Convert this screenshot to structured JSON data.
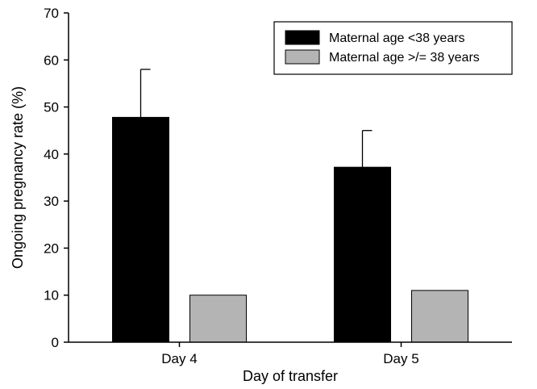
{
  "chart_data": {
    "type": "bar",
    "categories": [
      "Day 4",
      "Day 5"
    ],
    "series": [
      {
        "name": "Maternal age <38 years",
        "values": [
          47.8,
          37.2
        ],
        "error_upper": [
          58,
          45
        ],
        "color": "#000000"
      },
      {
        "name": "Maternal age >/= 38 years",
        "values": [
          10,
          11
        ],
        "color": "#b4b4b4"
      }
    ],
    "xlabel": "Day of transfer",
    "ylabel": "Ongoing pregnancy rate (%)",
    "ylim": [
      0,
      70
    ],
    "yticks": [
      "0",
      "10",
      "20",
      "30",
      "40",
      "50",
      "60",
      "70"
    ],
    "grid": false,
    "legend_position": "top-right"
  }
}
